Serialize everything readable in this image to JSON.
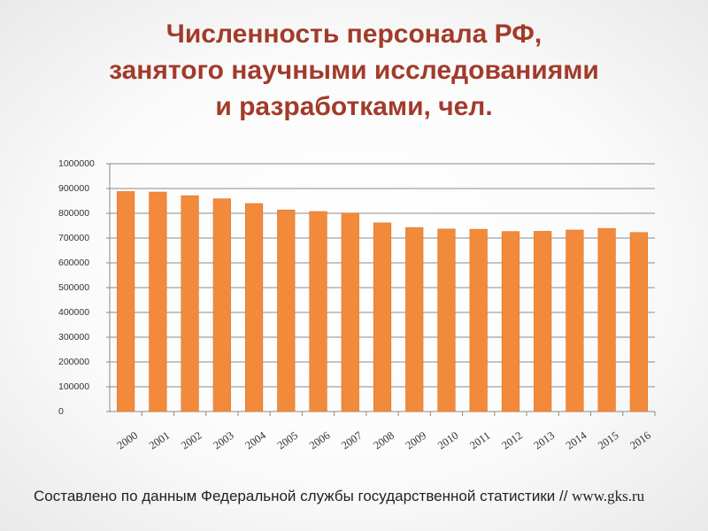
{
  "title": {
    "lines": [
      "Численность персонала РФ,",
      "занятого научными исследованиями",
      "и разработками, чел."
    ]
  },
  "source": {
    "text": "Составлено по данным Федеральной службы государственной статистики // ",
    "url": "www.gks.ru"
  },
  "colors": {
    "bar": "#f28a3c",
    "bar_edge": "#e07020",
    "title": "#a23b2a",
    "grid": "#8a8a8a"
  },
  "chart_data": {
    "type": "bar",
    "title": "",
    "xlabel": "",
    "ylabel": "",
    "ylim": [
      0,
      1000000
    ],
    "yticks": [
      0,
      100000,
      200000,
      300000,
      400000,
      500000,
      600000,
      700000,
      800000,
      900000,
      1000000
    ],
    "grid": true,
    "legend": "none",
    "categories": [
      "2000",
      "2001",
      "2002",
      "2003",
      "2004",
      "2005",
      "2006",
      "2007",
      "2008",
      "2009",
      "2010",
      "2011",
      "2012",
      "2013",
      "2014",
      "2015",
      "2016"
    ],
    "values": [
      887700,
      885600,
      870900,
      858500,
      839300,
      813200,
      807100,
      801100,
      761300,
      742400,
      736500,
      735300,
      726300,
      727000,
      732300,
      738900,
      722300
    ]
  }
}
